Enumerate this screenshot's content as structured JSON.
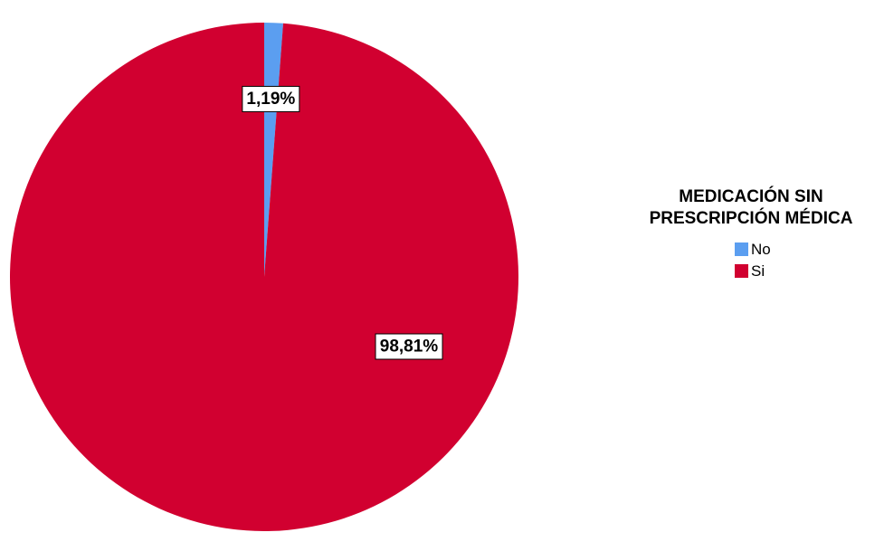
{
  "chart_data": {
    "type": "pie",
    "legend": {
      "title_lines": [
        "MEDICACIÓN SIN",
        "PRESCRIPCIÓN MÉDICA"
      ],
      "position": "right"
    },
    "slices": [
      {
        "label": "No",
        "value": 1.19,
        "display": "1,19%",
        "color": "#5b9ef0"
      },
      {
        "label": "Si",
        "value": 98.81,
        "display": "98,81%",
        "color": "#d10030"
      }
    ],
    "start_angle_deg": 0,
    "direction": "clockwise"
  }
}
